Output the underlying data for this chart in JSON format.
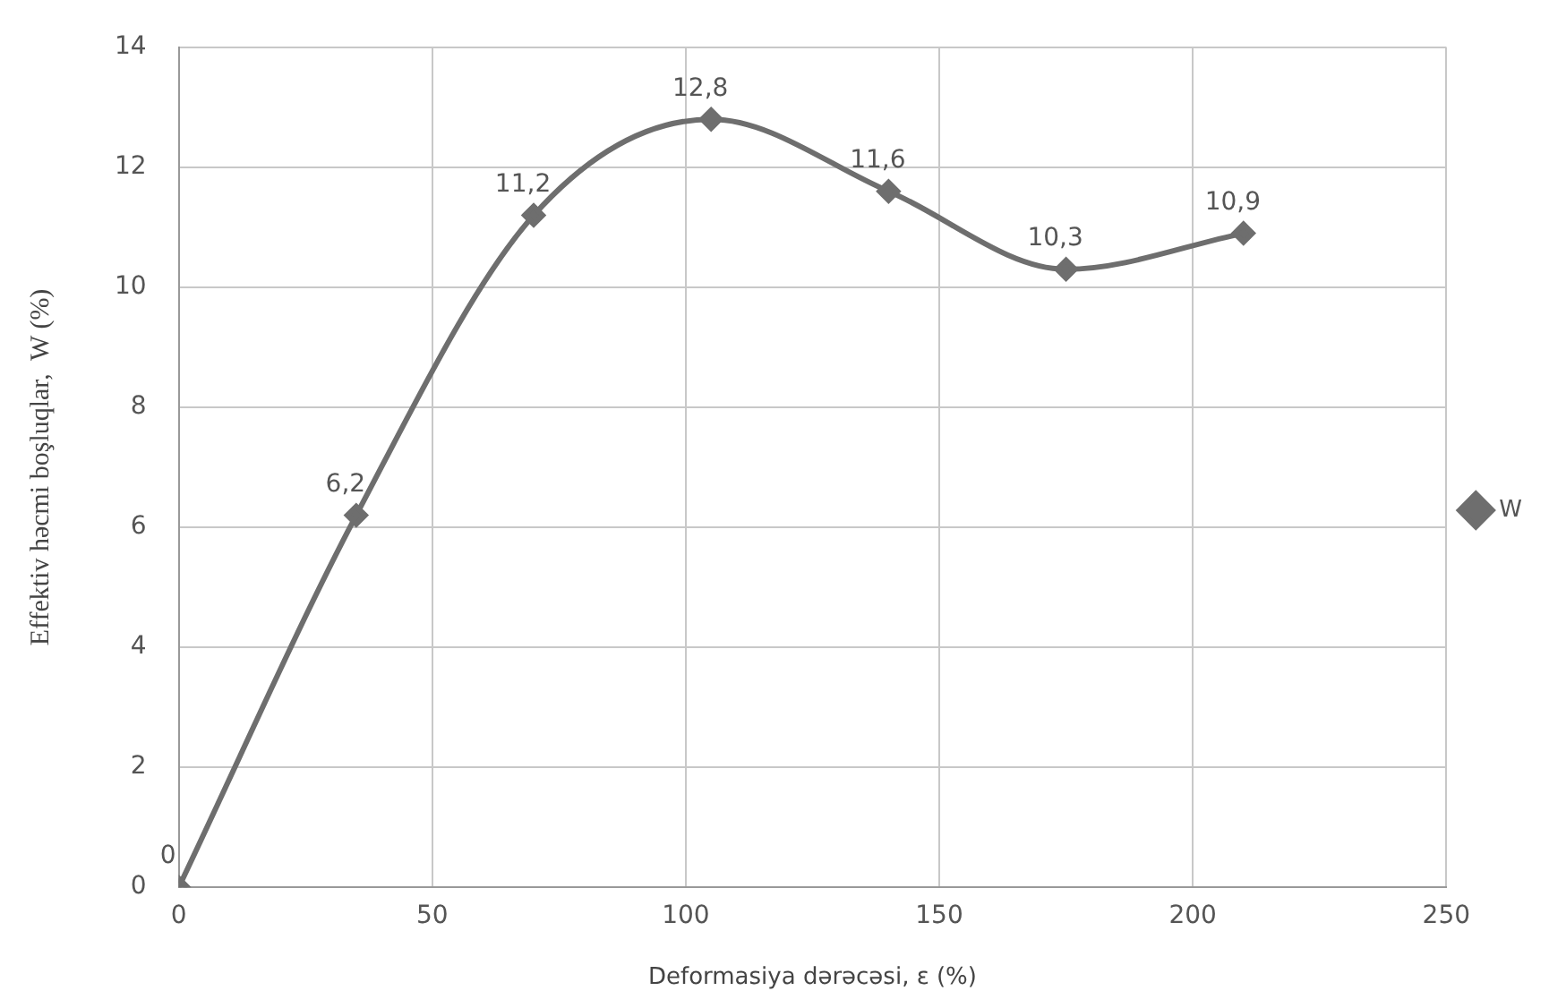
{
  "chart_data": {
    "type": "line",
    "xlabel": "Deformasiya dərəcəsi, ε (%)",
    "ylabel": "Effektiv həcmi boşluqlar,  W (%)",
    "x": [
      0,
      35,
      70,
      105,
      140,
      175,
      210
    ],
    "series": [
      {
        "name": "W",
        "color": "#6e6e6e",
        "values": [
          0,
          6.2,
          11.2,
          12.8,
          11.6,
          10.3,
          10.9
        ],
        "value_labels": [
          "0",
          "6,2",
          "11,2",
          "12,8",
          "11,6",
          "10,3",
          "10,9"
        ]
      }
    ],
    "xlim": [
      0,
      250
    ],
    "xticks": [
      0,
      50,
      100,
      150,
      200,
      250
    ],
    "ylim": [
      0,
      14
    ],
    "yticks": [
      0,
      2,
      4,
      6,
      8,
      10,
      12,
      14
    ],
    "grid": true,
    "legend": "right",
    "marker": "diamond",
    "line_style": "solid"
  }
}
